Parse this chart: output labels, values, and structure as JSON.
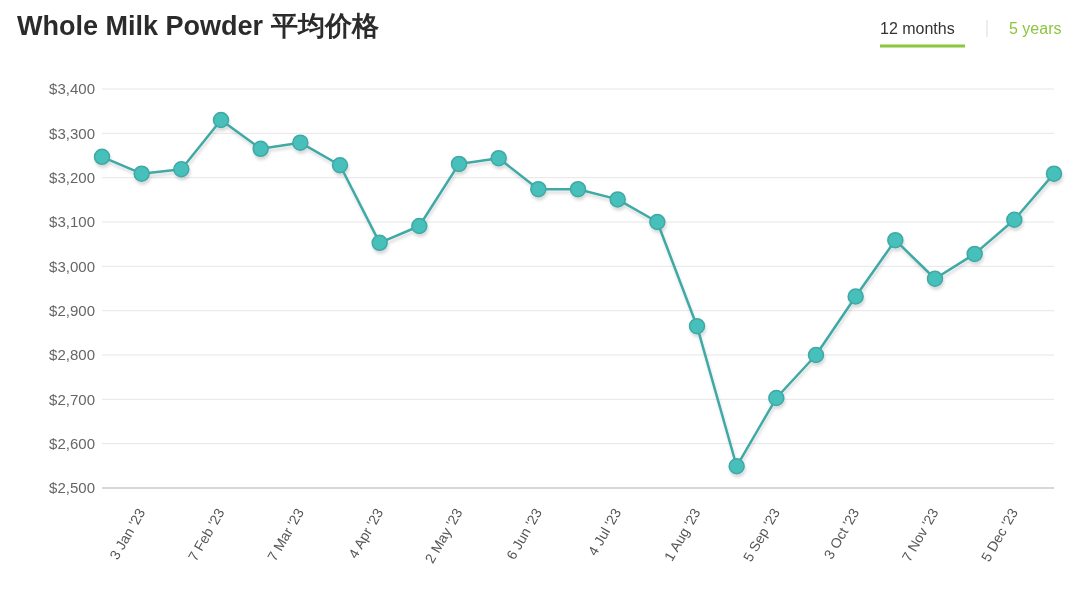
{
  "chart_data": {
    "type": "line",
    "title": "Whole Milk Powder 平均价格",
    "annotations": [
      "12 months",
      "5 years"
    ],
    "categories": [
      null,
      "3 Jan '23",
      null,
      "7 Feb '23",
      null,
      "7 Mar '23",
      null,
      "4 Apr '23",
      null,
      "2 May '23",
      null,
      "6 Jun '23",
      null,
      "4 Jul '23",
      null,
      "1 Aug '23",
      null,
      "5 Sep '23",
      null,
      "3 Oct '23",
      null,
      "7 Nov '23",
      null,
      "5 Dec '23",
      null
    ],
    "values": [
      3247,
      3209,
      3219,
      3330,
      3265,
      3279,
      3228,
      3053,
      3091,
      3231,
      3244,
      3174,
      3174,
      3151,
      3100,
      2865,
      2549,
      2703,
      2800,
      2932,
      3059,
      2972,
      3028,
      3105,
      3209
    ],
    "color": "#3fa9a5",
    "ylim": [
      2500,
      3400
    ],
    "yticks": [
      {
        "value": 2500,
        "label": "$2,500"
      },
      {
        "value": 2600,
        "label": "$2,600"
      },
      {
        "value": 2700,
        "label": "$2,700"
      },
      {
        "value": 2800,
        "label": "$2,800"
      },
      {
        "value": 2900,
        "label": "$2,900"
      },
      {
        "value": 3000,
        "label": "$3,000"
      },
      {
        "value": 3100,
        "label": "$3,100"
      },
      {
        "value": 3200,
        "label": "$3,200"
      },
      {
        "value": 3300,
        "label": "$3,300"
      },
      {
        "value": 3400,
        "label": "$3,400"
      }
    ],
    "grid": "y",
    "marker": "circle"
  }
}
